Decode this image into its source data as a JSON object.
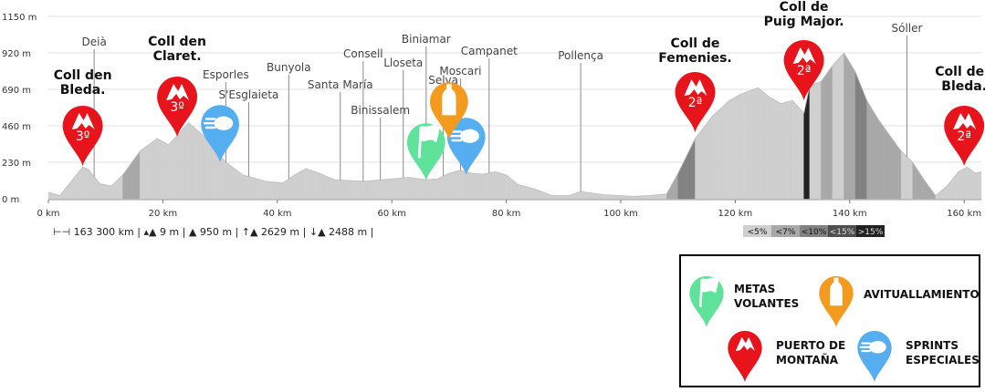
{
  "chart_data": {
    "type": "area",
    "title": "",
    "xlabel": "",
    "ylabel": "",
    "xlim": [
      0,
      163
    ],
    "ylim": [
      0,
      1150
    ],
    "x_ticks": [
      "0 km",
      "20 km",
      "40 km",
      "60 km",
      "80 km",
      "100 km",
      "120 km",
      "140 km",
      "160 km"
    ],
    "y_ticks": [
      "0 m",
      "230 m",
      "460 m",
      "690 m",
      "920 m",
      "1150 m"
    ],
    "profile": [
      [
        0,
        40
      ],
      [
        2,
        20
      ],
      [
        4,
        110
      ],
      [
        6,
        200
      ],
      [
        7,
        185
      ],
      [
        9,
        95
      ],
      [
        11,
        80
      ],
      [
        13,
        150
      ],
      [
        16,
        300
      ],
      [
        19,
        380
      ],
      [
        21,
        340
      ],
      [
        23,
        420
      ],
      [
        24.5,
        480
      ],
      [
        27,
        400
      ],
      [
        29,
        310
      ],
      [
        31,
        230
      ],
      [
        34,
        150
      ],
      [
        38,
        110
      ],
      [
        41,
        100
      ],
      [
        43,
        150
      ],
      [
        45,
        190
      ],
      [
        47,
        165
      ],
      [
        50,
        120
      ],
      [
        55,
        110
      ],
      [
        60,
        125
      ],
      [
        63,
        135
      ],
      [
        66,
        120
      ],
      [
        68,
        125
      ],
      [
        70,
        160
      ],
      [
        72,
        180
      ],
      [
        74,
        160
      ],
      [
        76,
        155
      ],
      [
        78,
        170
      ],
      [
        80,
        150
      ],
      [
        82,
        90
      ],
      [
        85,
        60
      ],
      [
        88,
        20
      ],
      [
        91,
        20
      ],
      [
        93,
        45
      ],
      [
        95,
        35
      ],
      [
        97,
        25
      ],
      [
        100,
        20
      ],
      [
        102,
        15
      ],
      [
        105,
        20
      ],
      [
        108,
        30
      ],
      [
        110,
        160
      ],
      [
        113,
        380
      ],
      [
        116,
        520
      ],
      [
        119,
        620
      ],
      [
        121,
        660
      ],
      [
        124,
        700
      ],
      [
        126,
        640
      ],
      [
        128,
        600
      ],
      [
        130,
        620
      ],
      [
        132,
        540
      ],
      [
        133,
        710
      ],
      [
        135,
        740
      ],
      [
        137,
        840
      ],
      [
        139,
        920
      ],
      [
        141,
        800
      ],
      [
        143,
        620
      ],
      [
        145,
        500
      ],
      [
        147,
        400
      ],
      [
        149,
        300
      ],
      [
        151,
        230
      ],
      [
        153,
        120
      ],
      [
        155,
        20
      ],
      [
        157,
        80
      ],
      [
        159,
        170
      ],
      [
        160.5,
        200
      ],
      [
        162,
        160
      ],
      [
        163,
        170
      ]
    ],
    "towns": [
      {
        "name": "Deià",
        "km": 8
      },
      {
        "name": "Esporles",
        "km": 31
      },
      {
        "name": "S'Esglaieta",
        "km": 35
      },
      {
        "name": "Bunyola",
        "km": 42
      },
      {
        "name": "Santa María",
        "km": 51
      },
      {
        "name": "Consell",
        "km": 55
      },
      {
        "name": "Binissalem",
        "km": 58
      },
      {
        "name": "Lloseta",
        "km": 62
      },
      {
        "name": "Biniamar",
        "km": 66
      },
      {
        "name": "Selva",
        "km": 69
      },
      {
        "name": "Moscari",
        "km": 72
      },
      {
        "name": "Campanet",
        "km": 77
      },
      {
        "name": "Pollença",
        "km": 93
      },
      {
        "name": "Sóller",
        "km": 150
      }
    ],
    "climbs": [
      {
        "name": "Coll den Bleda.",
        "cat": "3º",
        "km": 6
      },
      {
        "name": "Coll den Claret.",
        "cat": "3º",
        "km": 22.5
      },
      {
        "name": "Coll de Femenies.",
        "cat": "2ª",
        "km": 113
      },
      {
        "name": "Coll de Puig Major.",
        "cat": "2ª",
        "km": 132
      },
      {
        "name": "Coll den Bleda.",
        "cat": "2ª",
        "km": 160
      }
    ],
    "intermediate_sprints": [
      {
        "km": 66
      }
    ],
    "feed_zones": [
      {
        "km": 70
      }
    ],
    "special_sprints": [
      {
        "km": 30
      },
      {
        "km": 73
      }
    ],
    "slope_legend": [
      "<5%",
      "<7%",
      "<10%",
      "<15%",
      ">15%"
    ],
    "slope_colors": [
      "#cfcfcf",
      "#a8a8a8",
      "#828282",
      "#4e4e4e",
      "#222222"
    ]
  },
  "stats": {
    "distance": "163 300 km",
    "min_alt": "9 m",
    "max_alt": "950 m",
    "ascent": "2629 m",
    "descent": "2488 m"
  },
  "legend": {
    "metas_volantes": [
      "METAS",
      "VOLANTES"
    ],
    "avituallamiento": "AVITUALLAMIENTO",
    "puerto": [
      "PUERTO DE",
      "MONTAÑA"
    ],
    "sprints": [
      "SPRINTS",
      "ESPECIALES"
    ]
  },
  "marker_colors": {
    "puerto": "#e8141c",
    "metas_volantes": "#5fe39a",
    "avituallamiento": "#f39a1f",
    "sprints": "#55aef0"
  },
  "icons": {
    "puerto": "mountain-icon",
    "metas_volantes": "flag-icon",
    "avituallamiento": "bottle-icon",
    "sprints": "sprint-icon"
  }
}
